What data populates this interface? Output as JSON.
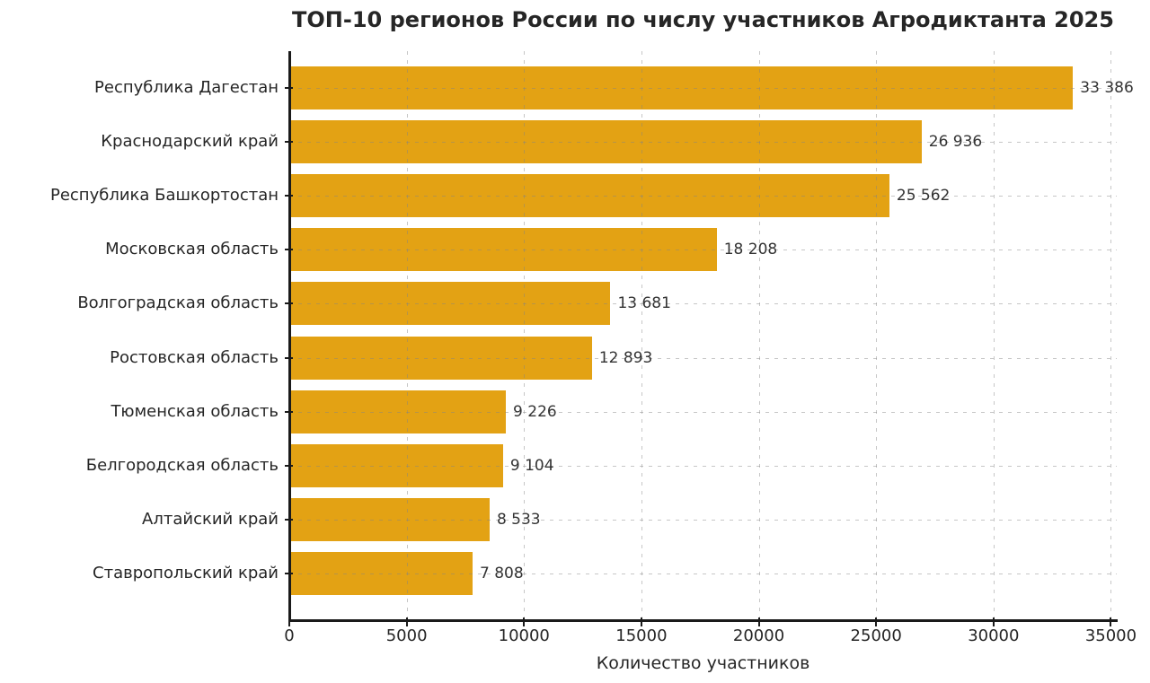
{
  "title": "ТОП-10 регионов России по числу участников Агродиктанта 2025",
  "chart_data": {
    "type": "bar",
    "orientation": "horizontal",
    "title": "ТОП-10 регионов России по числу участников Агродиктанта 2025",
    "categories": [
      "Республика Дагестан",
      "Краснодарский край",
      "Республика Башкортостан",
      "Московская область",
      "Волгоградская область",
      "Ростовская область",
      "Тюменская область",
      "Белгородская область",
      "Алтайский край",
      "Ставропольский край"
    ],
    "values": [
      33386,
      26936,
      25562,
      18208,
      13681,
      12893,
      9226,
      9104,
      8533,
      7808
    ],
    "value_labels": [
      "33 386",
      "26 936",
      "25 562",
      "18 208",
      "13 681",
      "12 893",
      "9 226",
      "9 104",
      "8 533",
      "7 808"
    ],
    "xlabel": "Количество участников",
    "ylabel": "",
    "xlim": [
      0,
      35250
    ],
    "xticks": [
      0,
      5000,
      10000,
      15000,
      20000,
      25000,
      30000,
      35000
    ],
    "grid": true,
    "grid_style": "dashed",
    "legend": "none",
    "bar_color": "#E3A214",
    "grid_color": "#c8c8c8",
    "axis_color": "#1a1a1a",
    "text_color": "#262626",
    "background_color": "#ffffff"
  }
}
